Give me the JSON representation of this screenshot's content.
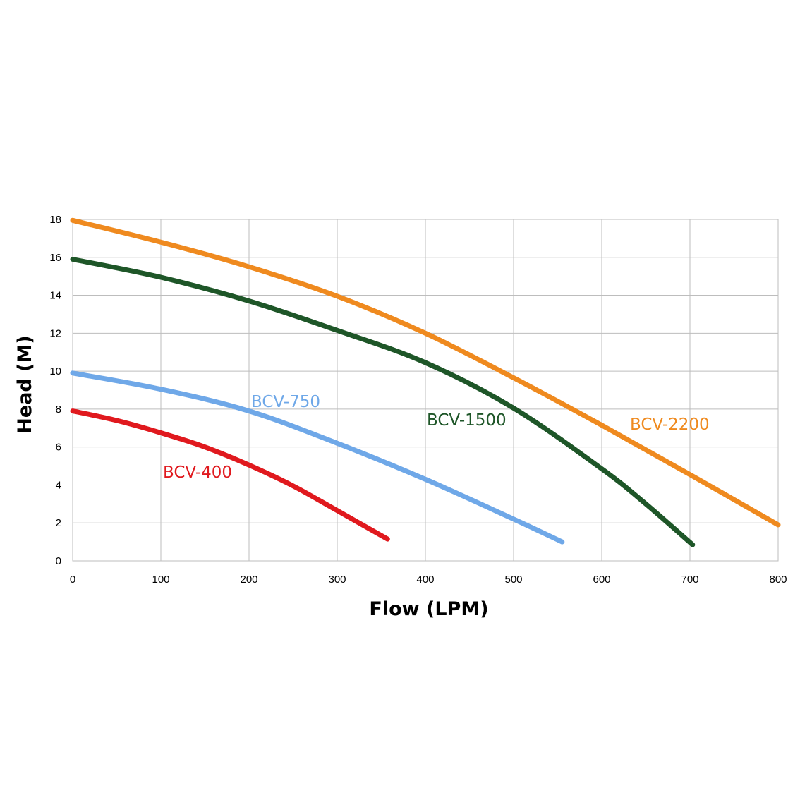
{
  "chart_data": {
    "type": "line",
    "xlabel": "Flow (LPM)",
    "ylabel": "Head (M)",
    "xlim": [
      0,
      800
    ],
    "ylim": [
      0,
      18
    ],
    "xticks": [
      "0",
      "100",
      "200",
      "300",
      "400",
      "500",
      "600",
      "700",
      "800"
    ],
    "yticks": [
      "0",
      "2",
      "4",
      "6",
      "8",
      "10",
      "12",
      "14",
      "16",
      "18"
    ],
    "grid": true,
    "legend": "inline labels",
    "series": [
      {
        "name": "BCV-400",
        "color": "#e0191e",
        "x": [
          0,
          50,
          100,
          150,
          200,
          250,
          300,
          357
        ],
        "y": [
          7.9,
          7.4,
          6.75,
          6.0,
          5.05,
          3.95,
          2.65,
          1.15
        ]
      },
      {
        "name": "BCV-750",
        "color": "#6fa8e8",
        "x": [
          0,
          100,
          200,
          300,
          400,
          500,
          555
        ],
        "y": [
          9.9,
          9.05,
          7.9,
          6.2,
          4.3,
          2.2,
          1.0
        ]
      },
      {
        "name": "BCV-1500",
        "color": "#1e5628",
        "x": [
          0,
          100,
          200,
          300,
          400,
          500,
          600,
          650,
          703
        ],
        "y": [
          15.9,
          14.95,
          13.7,
          12.15,
          10.45,
          8.05,
          4.85,
          3.0,
          0.85
        ]
      },
      {
        "name": "BCV-2200",
        "color": "#ef8a1f",
        "x": [
          0,
          100,
          200,
          300,
          400,
          500,
          600,
          700,
          800
        ],
        "y": [
          17.95,
          16.8,
          15.5,
          13.95,
          12.0,
          9.65,
          7.15,
          4.55,
          1.9
        ]
      }
    ]
  }
}
